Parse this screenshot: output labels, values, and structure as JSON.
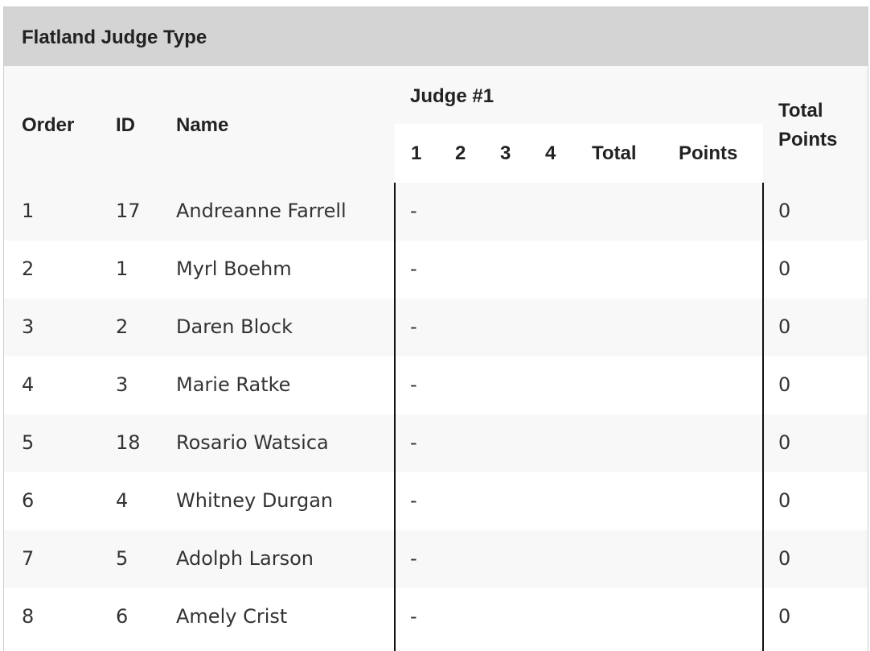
{
  "title": "Flatland Judge Type",
  "headers": {
    "order": "Order",
    "id": "ID",
    "name": "Name",
    "judge": "Judge #1",
    "judge_sub": [
      "1",
      "2",
      "3",
      "4",
      "Total",
      "Points"
    ],
    "total_points": [
      "Total",
      "Points"
    ]
  },
  "rows": [
    {
      "order": "1",
      "id": "17",
      "name": "Andreanne Farrell",
      "judge": "-",
      "total": "0"
    },
    {
      "order": "2",
      "id": "1",
      "name": "Myrl Boehm",
      "judge": "-",
      "total": "0"
    },
    {
      "order": "3",
      "id": "2",
      "name": "Daren Block",
      "judge": "-",
      "total": "0"
    },
    {
      "order": "4",
      "id": "3",
      "name": "Marie Ratke",
      "judge": "-",
      "total": "0"
    },
    {
      "order": "5",
      "id": "18",
      "name": "Rosario Watsica",
      "judge": "-",
      "total": "0"
    },
    {
      "order": "6",
      "id": "4",
      "name": "Whitney Durgan",
      "judge": "-",
      "total": "0"
    },
    {
      "order": "7",
      "id": "5",
      "name": "Adolph Larson",
      "judge": "-",
      "total": "0"
    },
    {
      "order": "8",
      "id": "6",
      "name": "Amely Crist",
      "judge": "-",
      "total": "0"
    }
  ]
}
